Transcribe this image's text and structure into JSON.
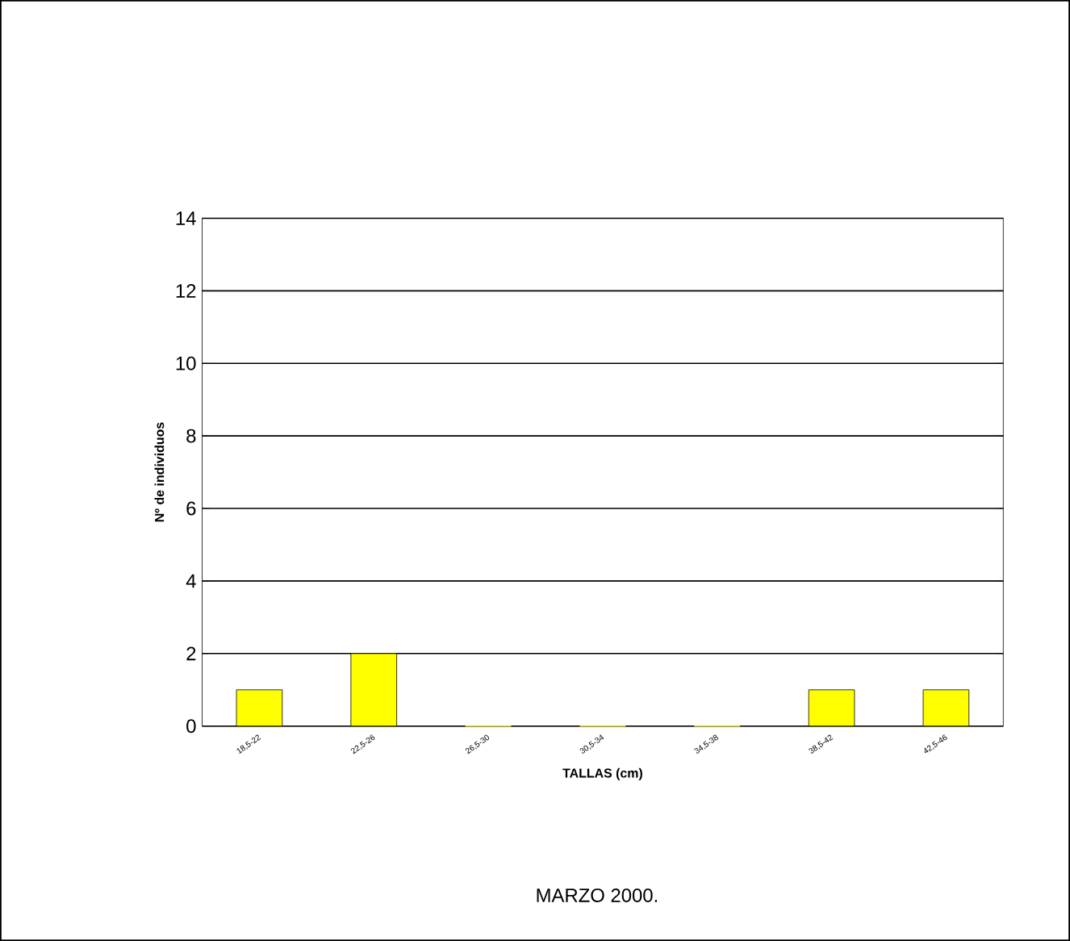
{
  "chart_data": {
    "type": "bar",
    "title": "MARZO 2000.",
    "xlabel": "TALLAS (cm)",
    "ylabel": "Nº de individuos",
    "categories": [
      "18,5-22",
      "22,5-26",
      "26,5-30",
      "30,5-34",
      "34,5-38",
      "38,5-42",
      "42,5-46"
    ],
    "values": [
      1,
      2,
      0,
      0,
      0,
      1,
      1
    ],
    "color": "#ffff00",
    "ylim": [
      0,
      14
    ],
    "yticks": [
      0,
      2,
      4,
      6,
      8,
      10,
      12,
      14
    ],
    "grid": "y"
  }
}
